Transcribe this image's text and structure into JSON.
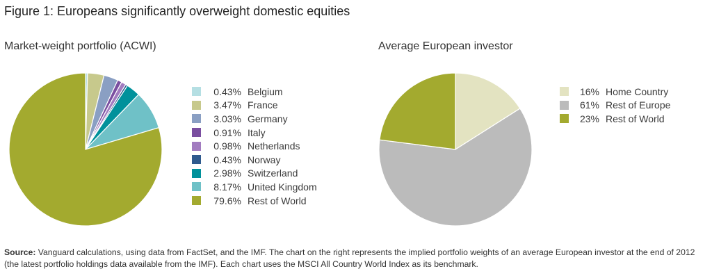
{
  "figure_title": "Figure 1: Europeans significantly overweight domestic equities",
  "source": {
    "label": "Source:",
    "text": "Vanguard calculations, using data from FactSet, and the IMF. The chart on the right represents the implied portfolio weights of an average European investor at the end of 2012 (the latest portfolio holdings data available from the IMF). Each chart uses the MSCI All Country World Index as its benchmark."
  },
  "chart_data": [
    {
      "type": "pie",
      "title": "Market-weight portfolio (ACWI)",
      "legend_position": "right",
      "slices": [
        {
          "label": "Belgium",
          "display": "0.43%",
          "value": 0.43,
          "color": "#b5dfe3"
        },
        {
          "label": "France",
          "display": "3.47%",
          "value": 3.47,
          "color": "#c7c98c"
        },
        {
          "label": "Germany",
          "display": "3.03%",
          "value": 3.03,
          "color": "#8a9fc3"
        },
        {
          "label": "Italy",
          "display": "0.91%",
          "value": 0.91,
          "color": "#7a4ea0"
        },
        {
          "label": "Netherlands",
          "display": "0.98%",
          "value": 0.98,
          "color": "#a27cc0"
        },
        {
          "label": "Norway",
          "display": "0.43%",
          "value": 0.43,
          "color": "#2f5a8e"
        },
        {
          "label": "Switzerland",
          "display": "2.98%",
          "value": 2.98,
          "color": "#00919b"
        },
        {
          "label": "United Kingdom",
          "display": "8.17%",
          "value": 8.17,
          "color": "#6fc1c7"
        },
        {
          "label": "Rest of World",
          "display": "79.6%",
          "value": 79.6,
          "color": "#a3aa2f"
        }
      ]
    },
    {
      "type": "pie",
      "title": "Average European investor",
      "legend_position": "right",
      "slices": [
        {
          "label": "Home Country",
          "display": "16%",
          "value": 16,
          "color": "#e3e3c1"
        },
        {
          "label": "Rest of Europe",
          "display": "61%",
          "value": 61,
          "color": "#bbbbbb"
        },
        {
          "label": "Rest of World",
          "display": "23%",
          "value": 23,
          "color": "#a3aa2f"
        }
      ]
    }
  ]
}
